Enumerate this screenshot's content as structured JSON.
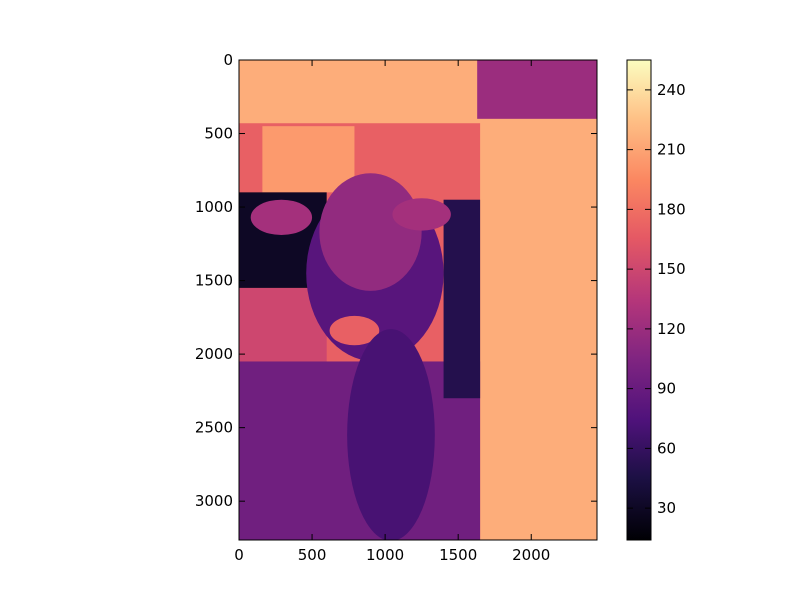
{
  "chart_data": {
    "type": "heatmap",
    "title": "",
    "xlabel": "",
    "ylabel": "",
    "colormap": "magma",
    "image_size": [
      2450,
      3264
    ],
    "xlim": [
      0,
      2450
    ],
    "ylim": [
      3264,
      0
    ],
    "x_ticks": [
      0,
      500,
      1000,
      1500,
      2000
    ],
    "y_ticks": [
      0,
      500,
      1000,
      1500,
      2000,
      2500,
      3000
    ],
    "colorbar": {
      "range": [
        14,
        255
      ],
      "ticks": [
        30,
        60,
        90,
        120,
        150,
        180,
        210,
        240
      ]
    },
    "grid": false,
    "legend": "none",
    "image_regions": [
      {
        "shape": "rect",
        "x0": 0,
        "y0": 0,
        "x1": 2450,
        "y1": 3264,
        "value": 215
      },
      {
        "shape": "rect",
        "x0": 1630,
        "y0": 0,
        "x1": 2450,
        "y1": 400,
        "value": 120
      },
      {
        "shape": "rect",
        "x0": 0,
        "y0": 430,
        "x1": 1650,
        "y1": 3264,
        "value": 170
      },
      {
        "shape": "rect",
        "x0": 160,
        "y0": 450,
        "x1": 790,
        "y1": 900,
        "value": 205
      },
      {
        "shape": "rect",
        "x0": 0,
        "y0": 900,
        "x1": 600,
        "y1": 1550,
        "value": 30
      },
      {
        "shape": "rect",
        "x0": 0,
        "y0": 1550,
        "x1": 600,
        "y1": 2050,
        "value": 150
      },
      {
        "shape": "rect",
        "x0": 0,
        "y0": 2050,
        "x1": 1650,
        "y1": 3264,
        "value": 95
      },
      {
        "shape": "rect",
        "x0": 1400,
        "y0": 950,
        "x1": 1650,
        "y1": 2300,
        "value": 50
      },
      {
        "shape": "ellipse",
        "cx": 930,
        "cy": 1450,
        "rx": 470,
        "ry": 600,
        "value": 80
      },
      {
        "shape": "ellipse",
        "cx": 900,
        "cy": 1170,
        "rx": 350,
        "ry": 400,
        "value": 115
      },
      {
        "shape": "ellipse",
        "cx": 1250,
        "cy": 1050,
        "rx": 200,
        "ry": 110,
        "value": 125
      },
      {
        "shape": "ellipse",
        "cx": 290,
        "cy": 1070,
        "rx": 210,
        "ry": 120,
        "value": 125
      },
      {
        "shape": "ellipse",
        "cx": 790,
        "cy": 1840,
        "rx": 170,
        "ry": 100,
        "value": 170
      },
      {
        "shape": "ellipse",
        "cx": 1040,
        "cy": 2550,
        "rx": 300,
        "ry": 720,
        "value": 70
      }
    ]
  }
}
